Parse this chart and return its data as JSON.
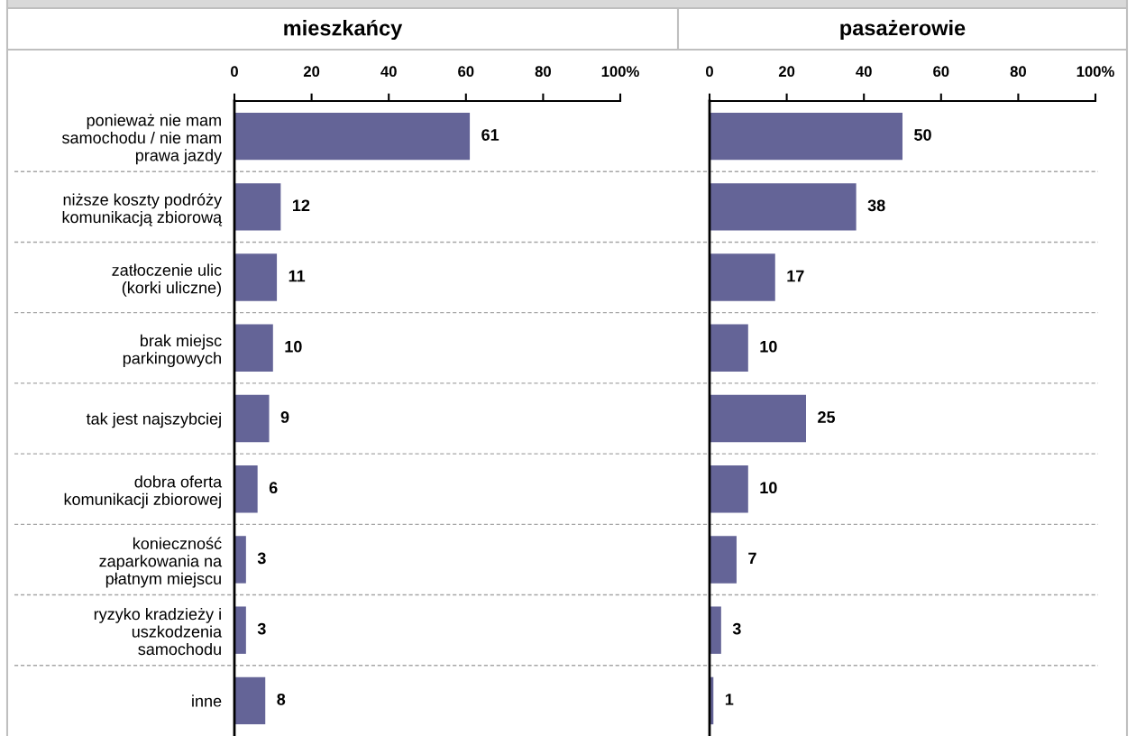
{
  "chart_data": [
    {
      "type": "bar",
      "orientation": "horizontal",
      "title": "mieszkańcy",
      "categories": [
        "ponieważ nie mam\nsamochodu / nie mam\nprawa jazdy",
        "niższe koszty podróży\nkomunikacją zbiorową",
        "zatłoczenie ulic\n(korki uliczne)",
        "brak miejsc\nparkingowych",
        "tak jest najszybciej",
        "dobra oferta\nkomunikacji zbiorowej",
        "konieczność\nzaparkowania na\npłatnym miejscu",
        "ryzyko kradzieży i\nuszkodzenia\nsamochodu",
        "inne"
      ],
      "values": [
        61,
        12,
        11,
        10,
        9,
        6,
        3,
        3,
        8
      ],
      "color": "#646497",
      "xlim": [
        0,
        100
      ],
      "xticks": [
        0,
        20,
        40,
        60,
        80,
        {
          "value": 100,
          "label": "100%"
        }
      ],
      "data_labels": true,
      "grid": "y"
    },
    {
      "type": "bar",
      "orientation": "horizontal",
      "title": "pasażerowie",
      "categories": [
        null,
        null,
        null,
        null,
        null,
        null,
        null,
        null,
        null
      ],
      "values": [
        50,
        38,
        17,
        10,
        25,
        10,
        7,
        3,
        1
      ],
      "color": "#646497",
      "xlim": [
        0,
        100
      ],
      "xticks": [
        0,
        20,
        40,
        60,
        80,
        {
          "value": 100,
          "label": "100%"
        }
      ],
      "data_labels": true,
      "grid": "y"
    }
  ]
}
